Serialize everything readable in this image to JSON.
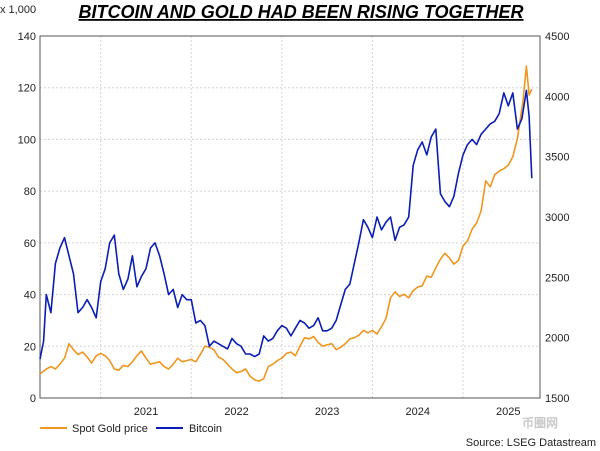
{
  "chart_data": {
    "type": "line",
    "title": "BITCOIN AND GOLD HAD BEEN RISING TOGETHER",
    "left_axis_unit": "x 1,000",
    "left_axis": {
      "ylim": [
        0,
        140
      ],
      "ticks": [
        0,
        20,
        40,
        60,
        80,
        100,
        120,
        140
      ]
    },
    "right_axis": {
      "ylim": [
        1500,
        4500
      ],
      "ticks": [
        1500,
        2000,
        2500,
        3000,
        3500,
        4000,
        4500
      ]
    },
    "x_axis": {
      "xlim": [
        2020.33,
        2025.85
      ],
      "ticks": [
        2021,
        2022,
        2023,
        2024,
        2025
      ],
      "labels": [
        "2021",
        "2022",
        "2023",
        "2024",
        "2025"
      ],
      "label_positions": [
        2021.0,
        2022.0,
        2023.0,
        2024.0,
        2025.0
      ]
    },
    "grid": true,
    "legend": {
      "position": "bottom-left"
    },
    "source": "Source: LSEG Datastream",
    "watermark": "币圈网",
    "series": [
      {
        "name": "Spot Gold price",
        "axis": "right",
        "color": "#f0961e",
        "x": [
          2020.33,
          2020.4,
          2020.45,
          2020.5,
          2020.55,
          2020.6,
          2020.65,
          2020.7,
          2020.75,
          2020.8,
          2020.85,
          2020.9,
          2020.95,
          2021.0,
          2021.05,
          2021.1,
          2021.15,
          2021.2,
          2021.25,
          2021.3,
          2021.35,
          2021.4,
          2021.45,
          2021.5,
          2021.55,
          2021.6,
          2021.65,
          2021.7,
          2021.75,
          2021.8,
          2021.85,
          2021.9,
          2021.95,
          2022.0,
          2022.05,
          2022.1,
          2022.15,
          2022.2,
          2022.25,
          2022.3,
          2022.35,
          2022.4,
          2022.45,
          2022.5,
          2022.55,
          2022.6,
          2022.65,
          2022.7,
          2022.75,
          2022.8,
          2022.85,
          2022.9,
          2022.95,
          2023.0,
          2023.05,
          2023.1,
          2023.15,
          2023.2,
          2023.25,
          2023.3,
          2023.35,
          2023.4,
          2023.45,
          2023.5,
          2023.55,
          2023.6,
          2023.65,
          2023.7,
          2023.75,
          2023.8,
          2023.85,
          2023.9,
          2023.95,
          2024.0,
          2024.05,
          2024.1,
          2024.15,
          2024.2,
          2024.25,
          2024.3,
          2024.35,
          2024.4,
          2024.45,
          2024.5,
          2024.55,
          2024.6,
          2024.65,
          2024.7,
          2024.75,
          2024.8,
          2024.85,
          2024.9,
          2024.95,
          2025.0,
          2025.05,
          2025.1,
          2025.15,
          2025.2,
          2025.25,
          2025.3,
          2025.35,
          2025.4,
          2025.45
        ],
        "y": [
          1700,
          1740,
          1760,
          1740,
          1780,
          1830,
          1950,
          1900,
          1860,
          1880,
          1840,
          1790,
          1850,
          1870,
          1850,
          1810,
          1740,
          1730,
          1770,
          1760,
          1800,
          1850,
          1890,
          1830,
          1780,
          1790,
          1800,
          1760,
          1740,
          1780,
          1830,
          1800,
          1810,
          1820,
          1800,
          1860,
          1930,
          1920,
          1900,
          1840,
          1820,
          1780,
          1740,
          1710,
          1720,
          1740,
          1680,
          1650,
          1640,
          1660,
          1760,
          1780,
          1810,
          1830,
          1870,
          1880,
          1850,
          1930,
          2000,
          1990,
          2010,
          1960,
          1930,
          1940,
          1950,
          1900,
          1920,
          1950,
          1990,
          2000,
          2020,
          2060,
          2040,
          2060,
          2030,
          2090,
          2160,
          2330,
          2380,
          2340,
          2360,
          2330,
          2390,
          2420,
          2430,
          2510,
          2500,
          2580,
          2650,
          2700,
          2660,
          2610,
          2640,
          2760,
          2800,
          2900,
          2950,
          3050,
          3300,
          3250,
          3350,
          3380,
          3400
        ],
        "x2": [
          2025.5,
          2025.55,
          2025.6,
          2025.63,
          2025.66,
          2025.7,
          2025.73,
          2025.76
        ],
        "y2": [
          3430,
          3500,
          3650,
          3800,
          3950,
          4250,
          4010,
          4060
        ]
      },
      {
        "name": "Bitcoin",
        "axis": "left",
        "color": "#0a1eb4",
        "x": [
          2020.33,
          2020.37,
          2020.4,
          2020.45,
          2020.5,
          2020.55,
          2020.6,
          2020.65,
          2020.7,
          2020.75,
          2020.8,
          2020.85,
          2020.9,
          2020.95,
          2021.0,
          2021.05,
          2021.1,
          2021.15,
          2021.2,
          2021.25,
          2021.3,
          2021.35,
          2021.4,
          2021.45,
          2021.5,
          2021.55,
          2021.6,
          2021.65,
          2021.7,
          2021.75,
          2021.8,
          2021.85,
          2021.9,
          2021.95,
          2022.0,
          2022.05,
          2022.1,
          2022.15,
          2022.2,
          2022.25,
          2022.3,
          2022.35,
          2022.4,
          2022.45,
          2022.5,
          2022.55,
          2022.6,
          2022.65,
          2022.7,
          2022.75,
          2022.8,
          2022.85,
          2022.9,
          2022.95,
          2023.0,
          2023.05,
          2023.1,
          2023.15,
          2023.2,
          2023.25,
          2023.3,
          2023.35,
          2023.4,
          2023.45,
          2023.5,
          2023.55,
          2023.6,
          2023.65,
          2023.7,
          2023.75,
          2023.8,
          2023.85,
          2023.9,
          2023.95,
          2024.0,
          2024.05,
          2024.1,
          2024.15,
          2024.2,
          2024.25,
          2024.3,
          2024.35,
          2024.4,
          2024.45,
          2024.5,
          2024.55,
          2024.6,
          2024.65,
          2024.7,
          2024.75,
          2024.8,
          2024.85,
          2024.9,
          2024.95,
          2025.0,
          2025.05,
          2025.1,
          2025.15,
          2025.2,
          2025.25,
          2025.3,
          2025.35,
          2025.4,
          2025.45,
          2025.5,
          2025.55,
          2025.6,
          2025.65,
          2025.7,
          2025.73,
          2025.76
        ],
        "y": [
          15,
          22,
          40,
          33,
          52,
          58,
          62,
          55,
          48,
          33,
          35,
          38,
          35,
          31,
          45,
          50,
          60,
          63,
          48,
          42,
          46,
          55,
          43,
          47,
          50,
          58,
          60,
          55,
          48,
          40,
          42,
          35,
          40,
          38,
          38,
          29,
          30,
          28,
          20,
          22,
          21,
          20,
          19,
          23,
          21,
          20,
          17,
          17,
          16,
          17,
          24,
          22,
          23,
          26,
          28,
          27,
          24,
          27,
          30,
          29,
          27,
          28,
          31,
          26,
          26,
          27,
          30,
          36,
          42,
          44,
          52,
          60,
          69,
          66,
          62,
          70,
          65,
          68,
          70,
          61,
          66,
          67,
          70,
          90,
          96,
          99,
          94,
          101,
          104,
          79,
          76,
          74,
          78,
          87,
          94,
          98,
          100,
          98,
          102,
          104,
          106,
          107,
          110,
          118,
          113,
          118,
          104,
          108,
          119,
          109,
          85
        ]
      }
    ]
  }
}
